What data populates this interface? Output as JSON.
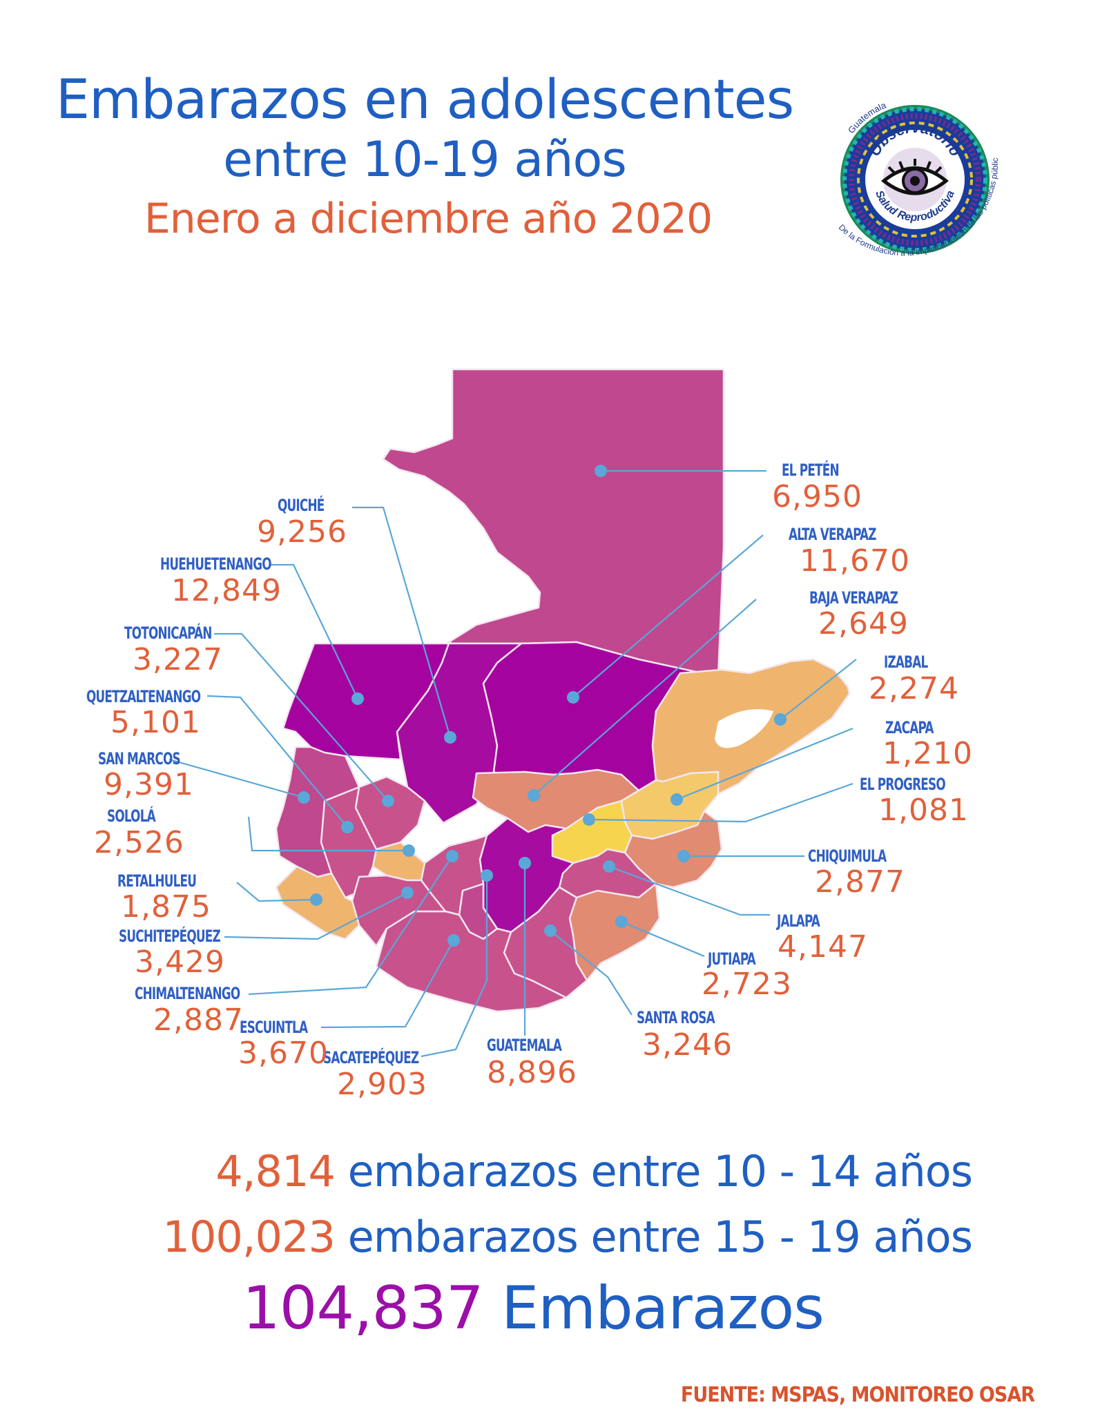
{
  "header": {
    "title_line1": "Embarazos en adolescentes",
    "title_line2": "entre 10-19 años",
    "subtitle": "Enero a diciembre año 2020"
  },
  "logo": {
    "top_text": "Guatemala",
    "line1": "Observatorio",
    "line2": "Salud Reproductiva",
    "ring_text": "De la Formulación a la implementación de las políticas públicas"
  },
  "map_colors": {
    "highest": "#a5039f",
    "high": "#c0488e",
    "mid_high": "#c8528c",
    "mid": "#e08b72",
    "low": "#efb56f",
    "lowest": "#f7d44e",
    "leader": "#5aa7d8"
  },
  "departments": [
    {
      "name": "EL PETÉN",
      "value": "6,950"
    },
    {
      "name": "ALTA VERAPAZ",
      "value": "11,670"
    },
    {
      "name": "BAJA VERAPAZ",
      "value": "2,649"
    },
    {
      "name": "IZABAL",
      "value": "2,274"
    },
    {
      "name": "ZACAPA",
      "value": "1,210"
    },
    {
      "name": "EL PROGRESO",
      "value": "1,081"
    },
    {
      "name": "CHIQUIMULA",
      "value": "2,877"
    },
    {
      "name": "JALAPA",
      "value": "4,147"
    },
    {
      "name": "JUTIAPA",
      "value": "2,723"
    },
    {
      "name": "SANTA ROSA",
      "value": "3,246"
    },
    {
      "name": "GUATEMALA",
      "value": "8,896"
    },
    {
      "name": "SACATEPÉQUEZ",
      "value": "2,903"
    },
    {
      "name": "ESCUINTLA",
      "value": "3,670"
    },
    {
      "name": "CHIMALTENANGO",
      "value": "2,887"
    },
    {
      "name": "SUCHITEPÉQUEZ",
      "value": "3,429"
    },
    {
      "name": "RETALHULEU",
      "value": "1,875"
    },
    {
      "name": "SOLOLÁ",
      "value": "2,526"
    },
    {
      "name": "SAN MARCOS",
      "value": "9,391"
    },
    {
      "name": "QUETZALTENANGO",
      "value": "5,101"
    },
    {
      "name": "TOTONICAPÁN",
      "value": "3,227"
    },
    {
      "name": "HUEHUETENANGO",
      "value": "12,849"
    },
    {
      "name": "QUICHÉ",
      "value": "9,256"
    }
  ],
  "summary": [
    {
      "number": "4,814",
      "text": " embarazos entre 10 - 14 años"
    },
    {
      "number": "100,023",
      "text": " embarazos entre 15 - 19 años"
    },
    {
      "number": "104,837",
      "text": " Embarazos"
    }
  ],
  "source": "FUENTE: MSPAS, MONITOREO OSAR"
}
